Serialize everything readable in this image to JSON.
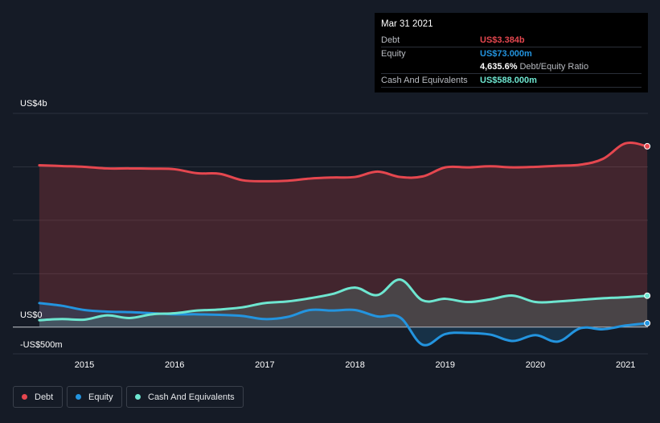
{
  "chart_data": {
    "type": "area",
    "ylim": [
      -500,
      4000
    ],
    "y_tick_labels": {
      "top": "US$4b",
      "zero": "US$0",
      "bottom": "-US$500m"
    },
    "x_tick_labels": [
      "2015",
      "2016",
      "2017",
      "2018",
      "2019",
      "2020",
      "2021"
    ],
    "grid": true,
    "legend_position": "bottom-left",
    "series": [
      {
        "name": "Debt",
        "color": "#e5474f",
        "x": [
          2014.5,
          2014.75,
          2015.0,
          2015.25,
          2015.5,
          2015.75,
          2016.0,
          2016.25,
          2016.5,
          2016.75,
          2017.0,
          2017.25,
          2017.5,
          2017.75,
          2018.0,
          2018.25,
          2018.5,
          2018.75,
          2019.0,
          2019.25,
          2019.5,
          2019.75,
          2020.0,
          2020.25,
          2020.5,
          2020.75,
          2021.0,
          2021.24
        ],
        "values": [
          3030,
          3015,
          3000,
          2970,
          2970,
          2965,
          2955,
          2880,
          2870,
          2750,
          2730,
          2740,
          2780,
          2800,
          2810,
          2910,
          2810,
          2820,
          2990,
          2990,
          3010,
          2990,
          3000,
          3020,
          3040,
          3150,
          3440,
          3384
        ]
      },
      {
        "name": "Equity",
        "color": "#2394df",
        "x": [
          2014.5,
          2014.75,
          2015.0,
          2015.25,
          2015.5,
          2015.75,
          2016.0,
          2016.25,
          2016.5,
          2016.75,
          2017.0,
          2017.25,
          2017.5,
          2017.75,
          2018.0,
          2018.25,
          2018.5,
          2018.75,
          2019.0,
          2019.25,
          2019.5,
          2019.75,
          2020.0,
          2020.25,
          2020.5,
          2020.75,
          2021.0,
          2021.24
        ],
        "values": [
          450,
          400,
          320,
          290,
          280,
          260,
          240,
          240,
          230,
          210,
          150,
          190,
          320,
          310,
          320,
          200,
          180,
          -330,
          -130,
          -110,
          -140,
          -260,
          -150,
          -270,
          -20,
          -40,
          30,
          73
        ]
      },
      {
        "name": "Cash And Equivalents",
        "color": "#6ee6d0",
        "x": [
          2014.5,
          2014.75,
          2015.0,
          2015.25,
          2015.5,
          2015.75,
          2016.0,
          2016.25,
          2016.5,
          2016.75,
          2017.0,
          2017.25,
          2017.5,
          2017.75,
          2018.0,
          2018.25,
          2018.5,
          2018.75,
          2019.0,
          2019.25,
          2019.5,
          2019.75,
          2020.0,
          2020.25,
          2020.5,
          2020.75,
          2021.0,
          2021.24
        ],
        "values": [
          130,
          150,
          140,
          220,
          170,
          240,
          260,
          310,
          330,
          370,
          450,
          480,
          540,
          620,
          740,
          600,
          890,
          500,
          530,
          470,
          520,
          590,
          470,
          480,
          510,
          540,
          560,
          588
        ]
      }
    ]
  },
  "tooltip": {
    "date": "Mar 31 2021",
    "rows": [
      {
        "label": "Debt",
        "value": "US$3.384b",
        "color": "#e5474f"
      },
      {
        "label": "Equity",
        "value": "US$73.000m",
        "color": "#2394df"
      },
      {
        "label": "",
        "value": "4,635.6%",
        "suffix": "Debt/Equity Ratio",
        "color": "#ffffff"
      },
      {
        "label": "Cash And Equivalents",
        "value": "US$588.000m",
        "color": "#6ee6d0"
      }
    ]
  },
  "legend": [
    {
      "label": "Debt",
      "color": "#e5474f"
    },
    {
      "label": "Equity",
      "color": "#2394df"
    },
    {
      "label": "Cash And Equivalents",
      "color": "#6ee6d0"
    }
  ]
}
